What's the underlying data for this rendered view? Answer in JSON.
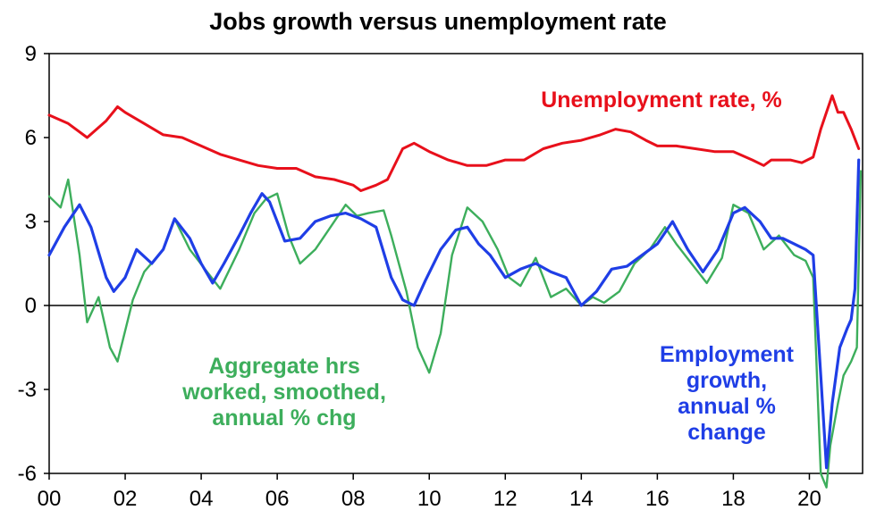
{
  "chart_data": {
    "type": "line",
    "title": "Jobs growth versus unemployment rate",
    "xlabel": "",
    "ylabel": "",
    "xlim": [
      2000,
      2021.4
    ],
    "ylim": [
      -6,
      9
    ],
    "x_tick_labels": [
      "00",
      "02",
      "04",
      "06",
      "08",
      "10",
      "12",
      "14",
      "16",
      "18",
      "20"
    ],
    "y_tick_labels": [
      "9",
      "6",
      "3",
      "0",
      "-3",
      "-6"
    ],
    "grid": false,
    "colors": {
      "unemployment": "#e8101b",
      "employment": "#1f3ee6",
      "hours": "#3dae5c"
    },
    "series": [
      {
        "name": "Unemployment rate, %",
        "color": "#e8101b",
        "x": [
          2000,
          2000.5,
          2001,
          2001.5,
          2001.8,
          2002,
          2002.5,
          2003,
          2003.5,
          2004,
          2004.5,
          2005,
          2005.5,
          2006,
          2006.5,
          2007,
          2007.5,
          2008,
          2008.2,
          2008.6,
          2008.9,
          2009.3,
          2009.6,
          2010,
          2010.5,
          2011,
          2011.5,
          2012,
          2012.5,
          2013,
          2013.5,
          2014,
          2014.5,
          2014.9,
          2015.3,
          2015.7,
          2016,
          2016.5,
          2017,
          2017.5,
          2018,
          2018.5,
          2018.8,
          2019,
          2019.5,
          2019.8,
          2020.1,
          2020.3,
          2020.5,
          2020.6,
          2020.75,
          2020.9,
          2021.1,
          2021.3
        ],
        "values": [
          6.8,
          6.5,
          6.0,
          6.6,
          7.1,
          6.9,
          6.5,
          6.1,
          6.0,
          5.7,
          5.4,
          5.2,
          5.0,
          4.9,
          4.9,
          4.6,
          4.5,
          4.3,
          4.1,
          4.3,
          4.5,
          5.6,
          5.8,
          5.5,
          5.2,
          5.0,
          5.0,
          5.2,
          5.2,
          5.6,
          5.8,
          5.9,
          6.1,
          6.3,
          6.2,
          5.9,
          5.7,
          5.7,
          5.6,
          5.5,
          5.5,
          5.2,
          5.0,
          5.2,
          5.2,
          5.1,
          5.3,
          6.3,
          7.1,
          7.5,
          6.9,
          6.9,
          6.3,
          5.6
        ]
      },
      {
        "name": "Employment growth, annual % change",
        "color": "#1f3ee6",
        "x": [
          2000,
          2000.4,
          2000.8,
          2001.1,
          2001.5,
          2001.7,
          2002,
          2002.3,
          2002.7,
          2003,
          2003.3,
          2003.7,
          2004,
          2004.3,
          2004.6,
          2005,
          2005.3,
          2005.6,
          2005.8,
          2006.2,
          2006.6,
          2007,
          2007.4,
          2007.8,
          2008.2,
          2008.6,
          2009,
          2009.3,
          2009.6,
          2009.9,
          2010.3,
          2010.7,
          2011,
          2011.3,
          2011.6,
          2012,
          2012.4,
          2012.8,
          2013.2,
          2013.6,
          2014,
          2014.4,
          2014.8,
          2015.2,
          2015.6,
          2016,
          2016.4,
          2016.8,
          2017.2,
          2017.6,
          2018,
          2018.3,
          2018.7,
          2019,
          2019.3,
          2019.6,
          2019.9,
          2020.1,
          2020.3,
          2020.45,
          2020.6,
          2020.8,
          2021,
          2021.1,
          2021.2,
          2021.3
        ],
        "values": [
          1.8,
          2.8,
          3.6,
          2.8,
          1.0,
          0.5,
          1.0,
          2.0,
          1.5,
          2.0,
          3.1,
          2.4,
          1.5,
          0.8,
          1.5,
          2.5,
          3.3,
          4.0,
          3.7,
          2.3,
          2.4,
          3.0,
          3.2,
          3.3,
          3.1,
          2.8,
          1.0,
          0.2,
          0.0,
          0.9,
          2.0,
          2.7,
          2.8,
          2.2,
          1.8,
          1.0,
          1.3,
          1.5,
          1.2,
          1.0,
          0.0,
          0.5,
          1.3,
          1.4,
          1.8,
          2.2,
          3.0,
          2.0,
          1.2,
          2.0,
          3.3,
          3.5,
          3.0,
          2.4,
          2.4,
          2.2,
          2.0,
          1.8,
          -2.5,
          -5.8,
          -3.5,
          -1.5,
          -0.8,
          -0.5,
          0.6,
          5.2
        ]
      },
      {
        "name": "Aggregate hrs worked, smoothed, annual % chg",
        "color": "#3dae5c",
        "x": [
          2000,
          2000.3,
          2000.5,
          2000.8,
          2001,
          2001.3,
          2001.6,
          2001.8,
          2002.2,
          2002.5,
          2003,
          2003.3,
          2003.7,
          2004.1,
          2004.5,
          2005,
          2005.4,
          2005.7,
          2006,
          2006.3,
          2006.6,
          2007,
          2007.4,
          2007.8,
          2008.1,
          2008.4,
          2008.8,
          2009,
          2009.4,
          2009.7,
          2010,
          2010.3,
          2010.6,
          2011,
          2011.4,
          2011.8,
          2012.1,
          2012.4,
          2012.8,
          2013.2,
          2013.6,
          2014,
          2014.3,
          2014.6,
          2015,
          2015.4,
          2015.8,
          2016.2,
          2016.5,
          2016.9,
          2017.3,
          2017.7,
          2018,
          2018.4,
          2018.8,
          2019.2,
          2019.6,
          2019.9,
          2020.1,
          2020.3,
          2020.45,
          2020.55,
          2020.75,
          2020.9,
          2021.1,
          2021.25,
          2021.35
        ],
        "values": [
          3.9,
          3.5,
          4.5,
          1.8,
          -0.6,
          0.3,
          -1.5,
          -2.0,
          0.2,
          1.2,
          2.0,
          3.1,
          2.0,
          1.3,
          0.6,
          2.0,
          3.3,
          3.8,
          4.0,
          2.5,
          1.5,
          2.0,
          2.8,
          3.6,
          3.2,
          3.3,
          3.4,
          2.5,
          0.5,
          -1.5,
          -2.4,
          -1.0,
          1.8,
          3.5,
          3.0,
          2.0,
          1.0,
          0.7,
          1.7,
          0.3,
          0.6,
          0.0,
          0.3,
          0.1,
          0.5,
          1.5,
          2.0,
          2.8,
          2.2,
          1.5,
          0.8,
          1.7,
          3.6,
          3.3,
          2.0,
          2.5,
          1.8,
          1.6,
          1.0,
          -6.0,
          -6.5,
          -5.0,
          -3.5,
          -2.5,
          -2.0,
          -1.5,
          4.8
        ]
      }
    ],
    "annotations": [
      {
        "series": "unemployment",
        "lines": [
          "Unemployment rate, %"
        ]
      },
      {
        "series": "hours",
        "lines": [
          "Aggregate hrs",
          "worked, smoothed,",
          "annual % chg"
        ]
      },
      {
        "series": "employment",
        "lines": [
          "Employment",
          "growth,",
          "annual %",
          "change"
        ]
      }
    ]
  }
}
